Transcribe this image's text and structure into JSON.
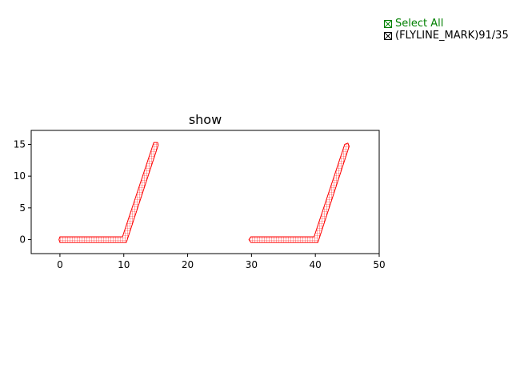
{
  "legend": {
    "select_all_label": "Select All",
    "layer_label": "(FLYLINE_MARK)91/35",
    "select_all_color": "#008000",
    "layer_color": "#000000",
    "select_all_checked": true,
    "layer_checked": true
  },
  "chart_data": {
    "type": "line",
    "title": "show",
    "xlabel": "",
    "ylabel": "",
    "xlim": [
      -4.5,
      50
    ],
    "ylim": [
      -2.2,
      17.2
    ],
    "xticks": [
      0,
      10,
      20,
      30,
      40,
      50
    ],
    "yticks": [
      0,
      5,
      10,
      15
    ],
    "grid": false,
    "series": [
      {
        "color": "#ff0000",
        "hatch": "grid",
        "polygon": [
          [
            0,
            0.45
          ],
          [
            9.8,
            0.45
          ],
          [
            14.7,
            15.3
          ],
          [
            15.3,
            15.3
          ],
          [
            15.4,
            14.9
          ],
          [
            10.4,
            -0.45
          ],
          [
            0,
            -0.45
          ],
          [
            -0.15,
            0
          ]
        ]
      },
      {
        "color": "#ff0000",
        "hatch": "grid",
        "polygon": [
          [
            29.9,
            0.45
          ],
          [
            39.8,
            0.45
          ],
          [
            44.6,
            15.0
          ],
          [
            45.1,
            15.2
          ],
          [
            45.3,
            14.7
          ],
          [
            40.4,
            -0.45
          ],
          [
            29.9,
            -0.45
          ],
          [
            29.6,
            0
          ]
        ]
      }
    ]
  }
}
